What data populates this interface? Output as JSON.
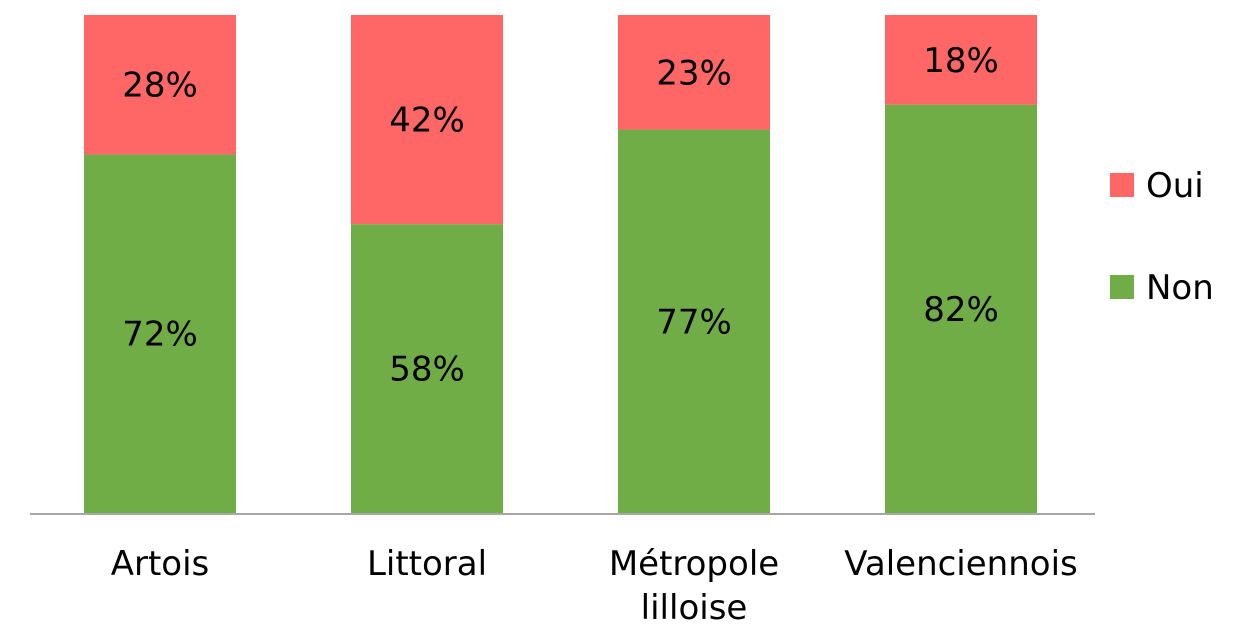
{
  "chart_data": {
    "type": "bar",
    "stacked": true,
    "categories": [
      [
        "Artois"
      ],
      [
        "Littoral"
      ],
      [
        "Métropole",
        "lilloise"
      ],
      [
        "Valenciennois"
      ]
    ],
    "series": [
      {
        "name": "Non",
        "values": [
          72,
          58,
          77,
          82
        ],
        "labels": [
          "72%",
          "58%",
          "77%",
          "82%"
        ],
        "color": "#70ad47"
      },
      {
        "name": "Oui",
        "values": [
          28,
          42,
          23,
          18
        ],
        "labels": [
          "28%",
          "42%",
          "23%",
          "18%"
        ],
        "color": "#ff6666"
      }
    ],
    "ylim": [
      0,
      100
    ],
    "title": "",
    "xlabel": "",
    "ylabel": "",
    "grid": false,
    "legend": {
      "position": "right",
      "order": [
        "Oui",
        "Non"
      ]
    },
    "axis_color": "#a6a6a6"
  }
}
